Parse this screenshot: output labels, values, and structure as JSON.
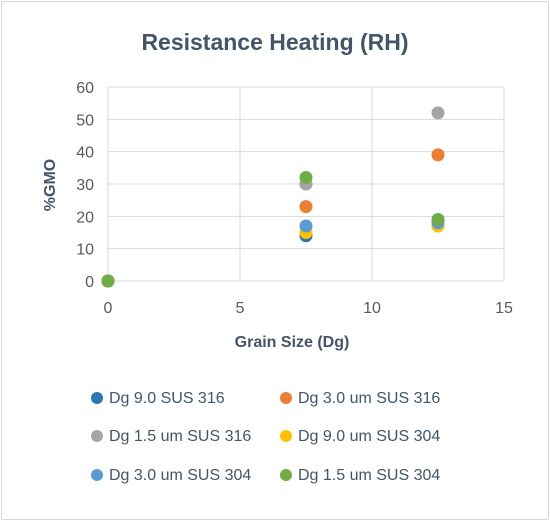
{
  "chart_data": {
    "type": "scatter",
    "title": "Resistance Heating (RH)",
    "xlabel": "Grain Size (Dg)",
    "ylabel": "%GMO",
    "xlim": [
      0,
      15
    ],
    "ylim": [
      0,
      60
    ],
    "xticks": [
      "0",
      "5",
      "10",
      "15"
    ],
    "yticks": [
      "0",
      "10",
      "20",
      "30",
      "40",
      "50",
      "60"
    ],
    "grid": true,
    "legend_position": "bottom",
    "series": [
      {
        "name": "Dg 9.0 SUS 316",
        "color": "#2e75b6",
        "x": [
          0,
          7.5,
          12.5
        ],
        "y": [
          0,
          14,
          19
        ]
      },
      {
        "name": "Dg 3.0 um SUS 316",
        "color": "#ed7d31",
        "x": [
          0,
          7.5,
          12.5
        ],
        "y": [
          0,
          23,
          39
        ]
      },
      {
        "name": "Dg 1.5 um SUS 316",
        "color": "#a5a5a5",
        "x": [
          0,
          7.5,
          12.5
        ],
        "y": [
          0,
          30,
          52
        ]
      },
      {
        "name": "Dg 9.0 um SUS 304",
        "color": "#ffc000",
        "x": [
          0,
          7.5,
          12.5
        ],
        "y": [
          0,
          15,
          17
        ]
      },
      {
        "name": "Dg 3.0 um SUS 304",
        "color": "#5b9bd5",
        "x": [
          0,
          7.5,
          12.5
        ],
        "y": [
          0,
          17,
          18
        ]
      },
      {
        "name": "Dg 1.5 um SUS 304",
        "color": "#70ad47",
        "x": [
          0,
          7.5,
          12.5
        ],
        "y": [
          0,
          32,
          19
        ]
      }
    ]
  }
}
